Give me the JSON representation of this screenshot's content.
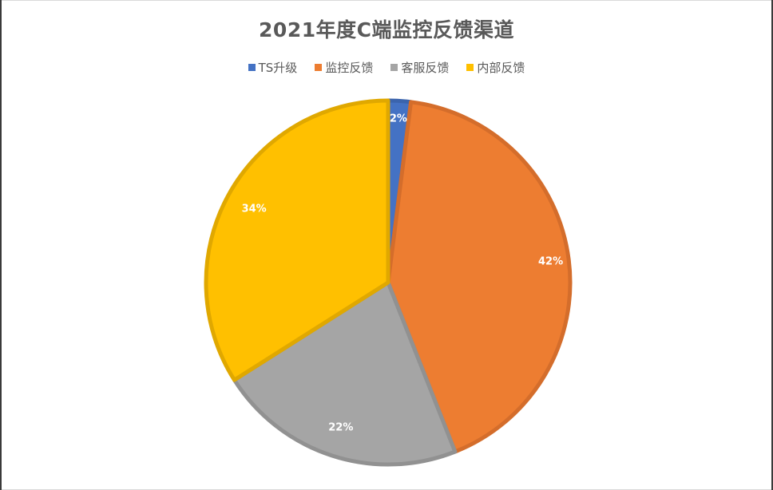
{
  "chart_data": {
    "type": "pie",
    "title": "2021年度C端监控反馈渠道",
    "categories": [
      "TS升级",
      "监控反馈",
      "客服反馈",
      "内部反馈"
    ],
    "values": [
      2,
      42,
      22,
      34
    ],
    "labels": [
      "2%",
      "42%",
      "22%",
      "34%"
    ],
    "colors": [
      "#4472c4",
      "#ed7d31",
      "#a5a5a5",
      "#ffc000"
    ],
    "border_colors": [
      "#3b64ad",
      "#d46d2b",
      "#919191",
      "#e0a800"
    ],
    "legend_position": "top",
    "start_angle": "12 o'clock, clockwise"
  },
  "legend": [
    {
      "label": "TS升级",
      "color": "#4472c4"
    },
    {
      "label": "监控反馈",
      "color": "#ed7d31"
    },
    {
      "label": "客服反馈",
      "color": "#a5a5a5"
    },
    {
      "label": "内部反馈",
      "color": "#ffc000"
    }
  ]
}
